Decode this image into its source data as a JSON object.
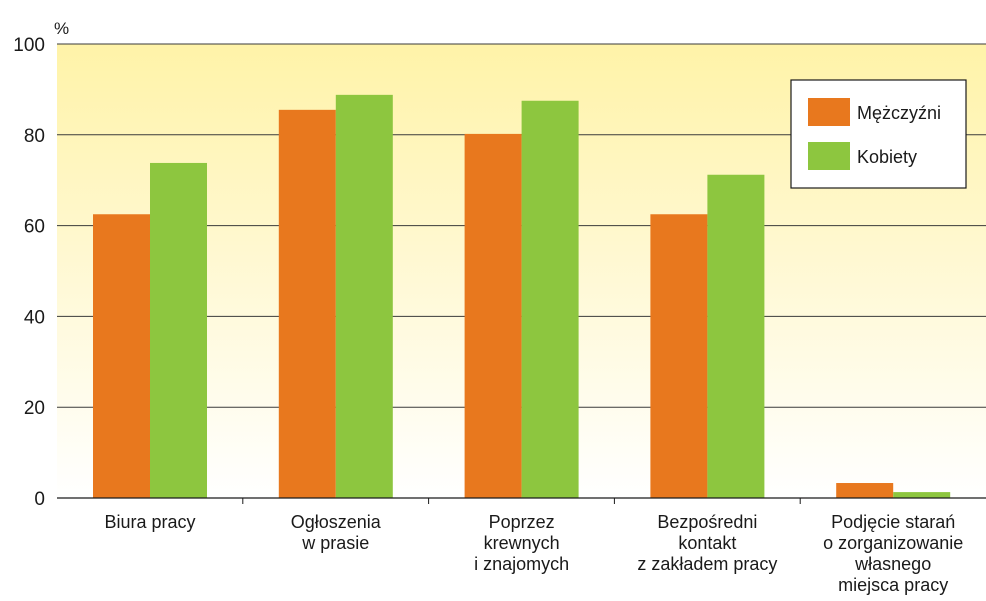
{
  "chart_data": {
    "type": "bar",
    "unit_label": "%",
    "ylim": [
      0,
      100
    ],
    "yticks": [
      0,
      20,
      40,
      60,
      80,
      100
    ],
    "grid": true,
    "legend_position": "top-right",
    "categories": [
      [
        "Biura pracy"
      ],
      [
        "Ogłoszenia",
        "w prasie"
      ],
      [
        "Poprzez",
        "krewnych",
        "i znajomych"
      ],
      [
        "Bezpośredni",
        "kontakt",
        "z zakładem pracy"
      ],
      [
        "Podjęcie starań",
        "o zorganizowanie",
        "własnego",
        "miejsca pracy"
      ]
    ],
    "series": [
      {
        "name": "Mężczyźni",
        "color": "#E8781E",
        "values": [
          62.5,
          85.5,
          80.2,
          62.5,
          3.3
        ]
      },
      {
        "name": "Kobiety",
        "color": "#8DC63F",
        "values": [
          73.8,
          88.8,
          87.5,
          71.2,
          1.3
        ]
      }
    ]
  }
}
